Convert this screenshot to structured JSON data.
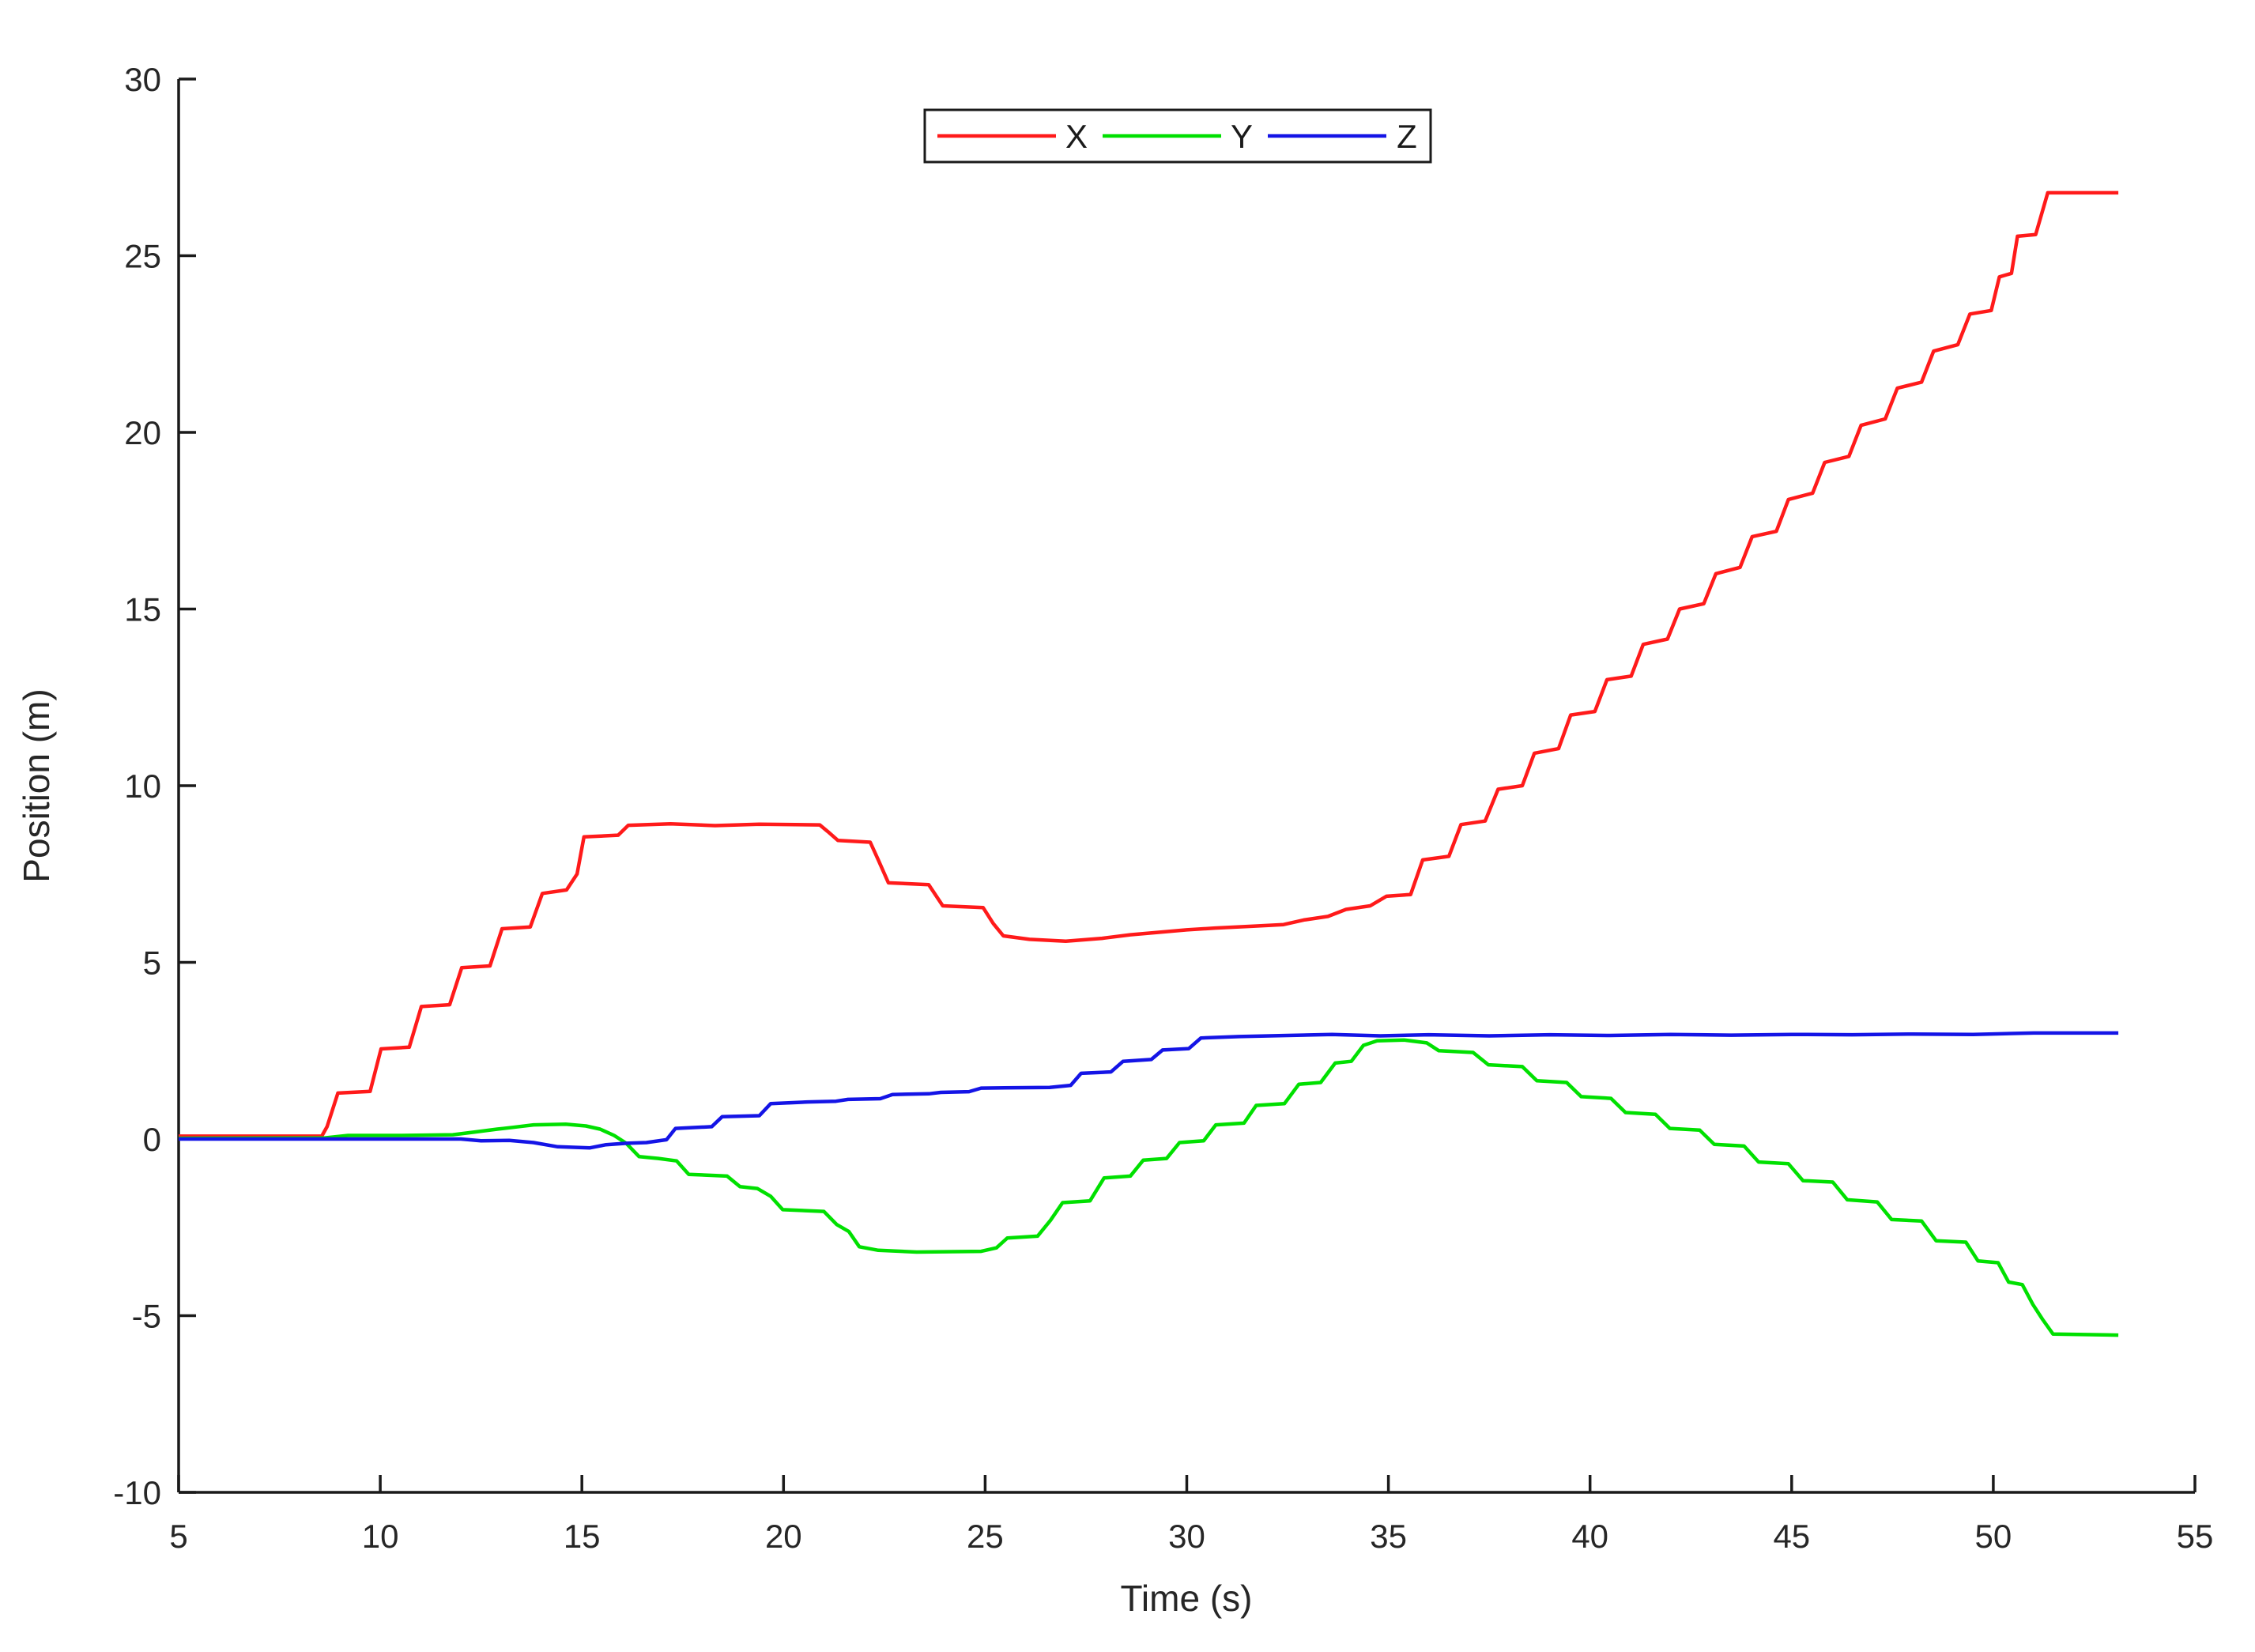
{
  "figure": {
    "background": "#ffffff",
    "axis_color": "#1a1a1a",
    "text_color": "#262626"
  },
  "chart_data": {
    "type": "line",
    "title": "",
    "xlabel": "Time (s)",
    "ylabel": "Position (m)",
    "xlim": [
      5,
      55
    ],
    "ylim": [
      -10,
      30
    ],
    "xticks": [
      5,
      10,
      15,
      20,
      25,
      30,
      35,
      40,
      45,
      50,
      55
    ],
    "yticks": [
      -10,
      -5,
      0,
      5,
      10,
      15,
      20,
      25,
      30
    ],
    "grid": false,
    "legend": {
      "position": "north",
      "border": true,
      "entries": [
        "X",
        "Y",
        "Z"
      ]
    },
    "series": [
      {
        "name": "X",
        "color": "#ff1a1a",
        "points": [
          [
            5,
            0.08
          ],
          [
            8.55,
            0.08
          ],
          [
            8.68,
            0.35
          ],
          [
            8.95,
            1.3
          ],
          [
            9.75,
            1.35
          ],
          [
            10.02,
            2.55
          ],
          [
            10.72,
            2.6
          ],
          [
            11.02,
            3.75
          ],
          [
            11.72,
            3.8
          ],
          [
            12.02,
            4.85
          ],
          [
            12.72,
            4.9
          ],
          [
            13.02,
            5.95
          ],
          [
            13.72,
            6.0
          ],
          [
            14.02,
            6.95
          ],
          [
            14.62,
            7.05
          ],
          [
            14.88,
            7.5
          ],
          [
            15.05,
            8.55
          ],
          [
            15.9,
            8.6
          ],
          [
            16.15,
            8.88
          ],
          [
            17.2,
            8.92
          ],
          [
            18.3,
            8.87
          ],
          [
            19.4,
            8.91
          ],
          [
            20.9,
            8.89
          ],
          [
            21.1,
            8.7
          ],
          [
            21.35,
            8.45
          ],
          [
            22.15,
            8.4
          ],
          [
            22.35,
            7.9
          ],
          [
            22.6,
            7.25
          ],
          [
            23.6,
            7.2
          ],
          [
            23.95,
            6.6
          ],
          [
            24.95,
            6.55
          ],
          [
            25.2,
            6.1
          ],
          [
            25.45,
            5.75
          ],
          [
            26.1,
            5.65
          ],
          [
            27.0,
            5.6
          ],
          [
            27.9,
            5.68
          ],
          [
            28.6,
            5.78
          ],
          [
            29.3,
            5.85
          ],
          [
            30.0,
            5.92
          ],
          [
            30.7,
            5.97
          ],
          [
            31.6,
            6.02
          ],
          [
            32.4,
            6.07
          ],
          [
            32.9,
            6.2
          ],
          [
            33.5,
            6.3
          ],
          [
            33.95,
            6.5
          ],
          [
            34.55,
            6.6
          ],
          [
            34.95,
            6.87
          ],
          [
            35.55,
            6.92
          ],
          [
            35.85,
            7.9
          ],
          [
            36.5,
            8.0
          ],
          [
            36.8,
            8.9
          ],
          [
            37.4,
            9.0
          ],
          [
            37.72,
            9.9
          ],
          [
            38.32,
            10.0
          ],
          [
            38.62,
            10.92
          ],
          [
            39.22,
            11.05
          ],
          [
            39.52,
            12.0
          ],
          [
            40.12,
            12.1
          ],
          [
            40.42,
            13.0
          ],
          [
            41.02,
            13.1
          ],
          [
            41.32,
            14.0
          ],
          [
            41.92,
            14.15
          ],
          [
            42.22,
            15.0
          ],
          [
            42.82,
            15.15
          ],
          [
            43.12,
            16.0
          ],
          [
            43.72,
            16.18
          ],
          [
            44.02,
            17.05
          ],
          [
            44.62,
            17.2
          ],
          [
            44.92,
            18.1
          ],
          [
            45.52,
            18.28
          ],
          [
            45.82,
            19.15
          ],
          [
            46.42,
            19.32
          ],
          [
            46.72,
            20.2
          ],
          [
            47.32,
            20.38
          ],
          [
            47.62,
            21.25
          ],
          [
            48.22,
            21.42
          ],
          [
            48.52,
            22.3
          ],
          [
            49.12,
            22.48
          ],
          [
            49.42,
            23.35
          ],
          [
            49.95,
            23.45
          ],
          [
            50.15,
            24.4
          ],
          [
            50.45,
            24.5
          ],
          [
            50.6,
            25.55
          ],
          [
            51.05,
            25.6
          ],
          [
            51.35,
            26.78
          ],
          [
            53.1,
            26.78
          ]
        ]
      },
      {
        "name": "Y",
        "color": "#00e000",
        "points": [
          [
            5,
            0.02
          ],
          [
            8.6,
            0.03
          ],
          [
            9.2,
            0.1
          ],
          [
            10.5,
            0.1
          ],
          [
            11.8,
            0.12
          ],
          [
            12.35,
            0.2
          ],
          [
            12.9,
            0.28
          ],
          [
            13.3,
            0.33
          ],
          [
            13.8,
            0.4
          ],
          [
            14.6,
            0.42
          ],
          [
            15.1,
            0.37
          ],
          [
            15.45,
            0.28
          ],
          [
            15.8,
            0.1
          ],
          [
            16.1,
            -0.12
          ],
          [
            16.42,
            -0.5
          ],
          [
            16.9,
            -0.55
          ],
          [
            17.35,
            -0.62
          ],
          [
            17.65,
            -1.0
          ],
          [
            18.6,
            -1.05
          ],
          [
            18.92,
            -1.35
          ],
          [
            19.35,
            -1.4
          ],
          [
            19.68,
            -1.62
          ],
          [
            19.98,
            -2.0
          ],
          [
            21.0,
            -2.05
          ],
          [
            21.32,
            -2.42
          ],
          [
            21.62,
            -2.62
          ],
          [
            21.88,
            -3.05
          ],
          [
            22.35,
            -3.15
          ],
          [
            23.3,
            -3.2
          ],
          [
            24.9,
            -3.18
          ],
          [
            25.28,
            -3.08
          ],
          [
            25.55,
            -2.8
          ],
          [
            26.3,
            -2.75
          ],
          [
            26.62,
            -2.3
          ],
          [
            26.92,
            -1.8
          ],
          [
            27.6,
            -1.75
          ],
          [
            27.95,
            -1.1
          ],
          [
            28.6,
            -1.05
          ],
          [
            28.92,
            -0.6
          ],
          [
            29.5,
            -0.55
          ],
          [
            29.82,
            -0.1
          ],
          [
            30.42,
            -0.05
          ],
          [
            30.72,
            0.4
          ],
          [
            31.42,
            0.45
          ],
          [
            31.72,
            0.95
          ],
          [
            32.42,
            1.0
          ],
          [
            32.78,
            1.55
          ],
          [
            33.32,
            1.6
          ],
          [
            33.68,
            2.15
          ],
          [
            34.08,
            2.2
          ],
          [
            34.38,
            2.65
          ],
          [
            34.72,
            2.78
          ],
          [
            35.4,
            2.8
          ],
          [
            35.95,
            2.72
          ],
          [
            36.25,
            2.5
          ],
          [
            37.1,
            2.45
          ],
          [
            37.48,
            2.1
          ],
          [
            38.32,
            2.05
          ],
          [
            38.68,
            1.65
          ],
          [
            39.42,
            1.6
          ],
          [
            39.78,
            1.2
          ],
          [
            40.52,
            1.15
          ],
          [
            40.88,
            0.75
          ],
          [
            41.62,
            0.7
          ],
          [
            41.98,
            0.3
          ],
          [
            42.72,
            0.25
          ],
          [
            43.08,
            -0.15
          ],
          [
            43.82,
            -0.2
          ],
          [
            44.18,
            -0.65
          ],
          [
            44.92,
            -0.7
          ],
          [
            45.28,
            -1.18
          ],
          [
            46.02,
            -1.22
          ],
          [
            46.38,
            -1.72
          ],
          [
            47.12,
            -1.78
          ],
          [
            47.48,
            -2.28
          ],
          [
            48.22,
            -2.32
          ],
          [
            48.58,
            -2.88
          ],
          [
            49.32,
            -2.92
          ],
          [
            49.62,
            -3.45
          ],
          [
            50.12,
            -3.5
          ],
          [
            50.38,
            -4.05
          ],
          [
            50.72,
            -4.12
          ],
          [
            50.98,
            -4.68
          ],
          [
            51.22,
            -5.1
          ],
          [
            51.48,
            -5.52
          ],
          [
            53.1,
            -5.55
          ]
        ]
      },
      {
        "name": "Z",
        "color": "#1414e6",
        "points": [
          [
            5,
            0.0
          ],
          [
            12.0,
            0.0
          ],
          [
            12.5,
            -0.05
          ],
          [
            13.2,
            -0.04
          ],
          [
            13.8,
            -0.1
          ],
          [
            14.4,
            -0.22
          ],
          [
            15.2,
            -0.25
          ],
          [
            15.6,
            -0.16
          ],
          [
            16.1,
            -0.12
          ],
          [
            16.6,
            -0.1
          ],
          [
            17.1,
            -0.02
          ],
          [
            17.32,
            0.3
          ],
          [
            18.22,
            0.35
          ],
          [
            18.48,
            0.63
          ],
          [
            19.4,
            0.66
          ],
          [
            19.68,
            1.0
          ],
          [
            20.6,
            1.05
          ],
          [
            21.3,
            1.07
          ],
          [
            21.6,
            1.12
          ],
          [
            22.4,
            1.14
          ],
          [
            22.7,
            1.26
          ],
          [
            23.6,
            1.28
          ],
          [
            23.9,
            1.32
          ],
          [
            24.6,
            1.34
          ],
          [
            24.9,
            1.44
          ],
          [
            26.6,
            1.46
          ],
          [
            27.12,
            1.52
          ],
          [
            27.38,
            1.86
          ],
          [
            28.12,
            1.9
          ],
          [
            28.42,
            2.2
          ],
          [
            29.12,
            2.25
          ],
          [
            29.4,
            2.52
          ],
          [
            30.05,
            2.56
          ],
          [
            30.35,
            2.86
          ],
          [
            31.3,
            2.9
          ],
          [
            32.5,
            2.93
          ],
          [
            33.6,
            2.96
          ],
          [
            34.8,
            2.92
          ],
          [
            36.0,
            2.95
          ],
          [
            37.5,
            2.92
          ],
          [
            39.0,
            2.95
          ],
          [
            40.5,
            2.93
          ],
          [
            42.0,
            2.96
          ],
          [
            43.5,
            2.94
          ],
          [
            45.0,
            2.96
          ],
          [
            46.5,
            2.95
          ],
          [
            48.0,
            2.97
          ],
          [
            49.5,
            2.96
          ],
          [
            51.0,
            3.0
          ],
          [
            53.1,
            3.0
          ]
        ]
      }
    ]
  }
}
